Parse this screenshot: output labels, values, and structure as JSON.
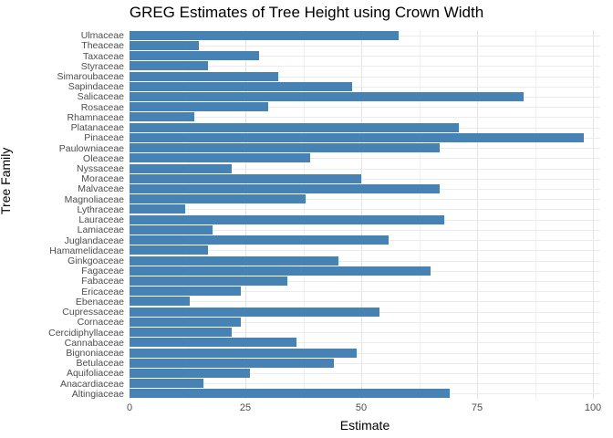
{
  "chart_data": {
    "type": "bar",
    "orientation": "horizontal",
    "title": "GREG Estimates of Tree Height using Crown Width",
    "xlabel": "Estimate",
    "ylabel": "Tree Family",
    "xlim": [
      0,
      100
    ],
    "x_ticks": [
      0,
      25,
      50,
      75,
      100
    ],
    "x_minor_gridlines": [
      12.5,
      37.5,
      62.5,
      87.5
    ],
    "grid": true,
    "legend": false,
    "bar_color": "#4682B4",
    "categories": [
      "Ulmaceae",
      "Theaceae",
      "Taxaceae",
      "Styraceae",
      "Simaroubaceae",
      "Sapindaceae",
      "Salicaceae",
      "Rosaceae",
      "Rhamnaceae",
      "Platanaceae",
      "Pinaceae",
      "Paulowniaceae",
      "Oleaceae",
      "Nyssaceae",
      "Moraceae",
      "Malvaceae",
      "Magnoliaceae",
      "Lythraceae",
      "Lauraceae",
      "Lamiaceae",
      "Juglandaceae",
      "Hamamelidaceae",
      "Ginkgoaceae",
      "Fagaceae",
      "Fabaceae",
      "Ericaceae",
      "Ebenaceae",
      "Cupressaceae",
      "Cornaceae",
      "Cercidiphyllaceae",
      "Cannabaceae",
      "Bignoniaceae",
      "Betulaceae",
      "Aquifoliaceae",
      "Anacardiaceae",
      "Altingiaceae"
    ],
    "values": [
      58,
      15,
      28,
      17,
      32,
      48,
      85,
      30,
      14,
      71,
      98,
      67,
      39,
      22,
      50,
      67,
      38,
      12,
      68,
      18,
      56,
      17,
      45,
      65,
      34,
      24,
      13,
      54,
      24,
      22,
      36,
      49,
      44,
      26,
      16,
      69
    ]
  },
  "colors": {
    "bar": "#4682B4",
    "grid_major": "#e3e3e3",
    "grid_minor": "#f0f0f0",
    "tick_text": "#4d4d4d",
    "title_text": "#000000"
  }
}
